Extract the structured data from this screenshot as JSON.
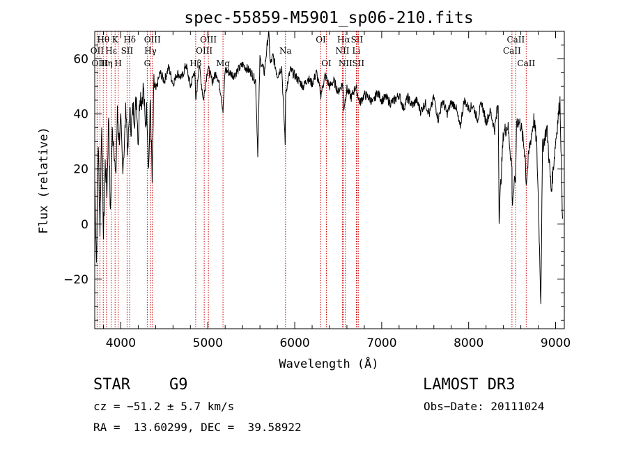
{
  "chart_data": {
    "type": "line",
    "title": "spec-55859-M5901_sp06-210.fits",
    "xlabel": "Wavelength (Å)",
    "ylabel": "Flux (relative)",
    "xlim": [
      3700,
      9100
    ],
    "ylim": [
      -38,
      70
    ],
    "xticks": [
      4000,
      5000,
      6000,
      7000,
      8000,
      9000
    ],
    "yticks": [
      -20,
      0,
      20,
      40,
      60
    ],
    "ytick_labels": [
      "−20",
      "0",
      "20",
      "40",
      "60"
    ],
    "series": [
      {
        "name": "flux",
        "x": [
          3700,
          3720,
          3740,
          3760,
          3780,
          3800,
          3820,
          3840,
          3860,
          3880,
          3900,
          3920,
          3940,
          3960,
          3980,
          4000,
          4020,
          4040,
          4060,
          4080,
          4100,
          4120,
          4140,
          4160,
          4180,
          4200,
          4220,
          4240,
          4260,
          4280,
          4300,
          4320,
          4340,
          4360,
          4380,
          4400,
          4450,
          4500,
          4550,
          4600,
          4650,
          4700,
          4750,
          4800,
          4850,
          4861,
          4900,
          4950,
          5000,
          5050,
          5100,
          5150,
          5175,
          5200,
          5300,
          5400,
          5500,
          5550,
          5575,
          5600,
          5650,
          5700,
          5720,
          5750,
          5800,
          5850,
          5890,
          5896,
          5950,
          6000,
          6050,
          6100,
          6150,
          6200,
          6250,
          6300,
          6350,
          6400,
          6450,
          6500,
          6550,
          6563,
          6600,
          6650,
          6700,
          6750,
          6800,
          6850,
          6900,
          6950,
          7000,
          7050,
          7100,
          7150,
          7200,
          7250,
          7300,
          7350,
          7400,
          7450,
          7500,
          7550,
          7600,
          7650,
          7700,
          7750,
          7800,
          7850,
          7900,
          7950,
          8000,
          8050,
          8100,
          8150,
          8200,
          8250,
          8300,
          8340,
          8350,
          8400,
          8450,
          8498,
          8500,
          8542,
          8550,
          8600,
          8650,
          8662,
          8700,
          8750,
          8780,
          8800,
          8830,
          8850,
          8900,
          8950,
          9000,
          9050,
          9080
        ],
        "y": [
          16,
          -14,
          30,
          -2,
          38,
          -5,
          22,
          12,
          40,
          2,
          33,
          30,
          15,
          40,
          31,
          36,
          21,
          28,
          43,
          25,
          41,
          35,
          42,
          39,
          46,
          30,
          48,
          45,
          50,
          36,
          42,
          20,
          45,
          15,
          51,
          48,
          55,
          52,
          57,
          51,
          55,
          53,
          58,
          50,
          56,
          44,
          58,
          45,
          57,
          52,
          55,
          48,
          41,
          56,
          54,
          58,
          55,
          52,
          26,
          60,
          55,
          70,
          58,
          61,
          54,
          57,
          30,
          48,
          56,
          54,
          52,
          50,
          53,
          51,
          55,
          47,
          54,
          50,
          52,
          48,
          51,
          42,
          49,
          46,
          50,
          44,
          47,
          46,
          44,
          48,
          45,
          46,
          44,
          45,
          47,
          42,
          46,
          43,
          45,
          41,
          44,
          40,
          46,
          38,
          45,
          40,
          44,
          43,
          35,
          45,
          42,
          43,
          38,
          44,
          37,
          41,
          34,
          44,
          3,
          33,
          36,
          20,
          8,
          18,
          38,
          36,
          25,
          15,
          28,
          38,
          30,
          10,
          -28,
          28,
          35,
          12,
          30,
          45,
          2
        ]
      }
    ],
    "emission_lines": [
      {
        "label": "Hθ",
        "wavelength": 3798,
        "row": 1
      },
      {
        "label": "OII",
        "wavelength": 3727,
        "row": 2
      },
      {
        "label": "OIII",
        "wavelength": 3760,
        "row": 3
      },
      {
        "label": "K",
        "wavelength": 3934,
        "row": 1
      },
      {
        "label": "Hε",
        "wavelength": 3889,
        "row": 2
      },
      {
        "label": "Hη",
        "wavelength": 3835,
        "row": 3
      },
      {
        "label": "H",
        "wavelength": 3969,
        "row": 3
      },
      {
        "label": "Hδ",
        "wavelength": 4102,
        "row": 1
      },
      {
        "label": "SII",
        "wavelength": 4072,
        "row": 2
      },
      {
        "label": "OIII",
        "wavelength": 4363,
        "row": 1
      },
      {
        "label": "Hγ",
        "wavelength": 4341,
        "row": 2
      },
      {
        "label": "G",
        "wavelength": 4304,
        "row": 3
      },
      {
        "label": "Hβ",
        "wavelength": 4861,
        "row": 3
      },
      {
        "label": "OIII",
        "wavelength": 5007,
        "row": 1
      },
      {
        "label": "OIII",
        "wavelength": 4959,
        "row": 2
      },
      {
        "label": "Mg",
        "wavelength": 5175,
        "row": 3
      },
      {
        "label": "Na",
        "wavelength": 5894,
        "row": 2
      },
      {
        "label": "OI",
        "wavelength": 6300,
        "row": 1
      },
      {
        "label": "OI",
        "wavelength": 6364,
        "row": 3
      },
      {
        "label": "Hα",
        "wavelength": 6563,
        "row": 1
      },
      {
        "label": "NII",
        "wavelength": 6548,
        "row": 2
      },
      {
        "label": "NII",
        "wavelength": 6583,
        "row": 3
      },
      {
        "label": "SII",
        "wavelength": 6716,
        "row": 1
      },
      {
        "label": "Li",
        "wavelength": 6708,
        "row": 2
      },
      {
        "label": "SII",
        "wavelength": 6731,
        "row": 3
      },
      {
        "label": "CaII",
        "wavelength": 8542,
        "row": 1
      },
      {
        "label": "CaII",
        "wavelength": 8498,
        "row": 2
      },
      {
        "label": "CaII",
        "wavelength": 8662,
        "row": 3
      }
    ],
    "colors": {
      "spectrum": "#000000",
      "lines": "#cc0000",
      "axes": "#000000"
    }
  },
  "info": {
    "class_label": "STAR",
    "subclass": "G9",
    "survey": "LAMOST DR3",
    "cz": "cz = −51.2 ± 5.7 km/s",
    "obs_date": "Obs−Date: 20111024",
    "radec": "RA =  13.60299, DEC =  39.58922"
  }
}
